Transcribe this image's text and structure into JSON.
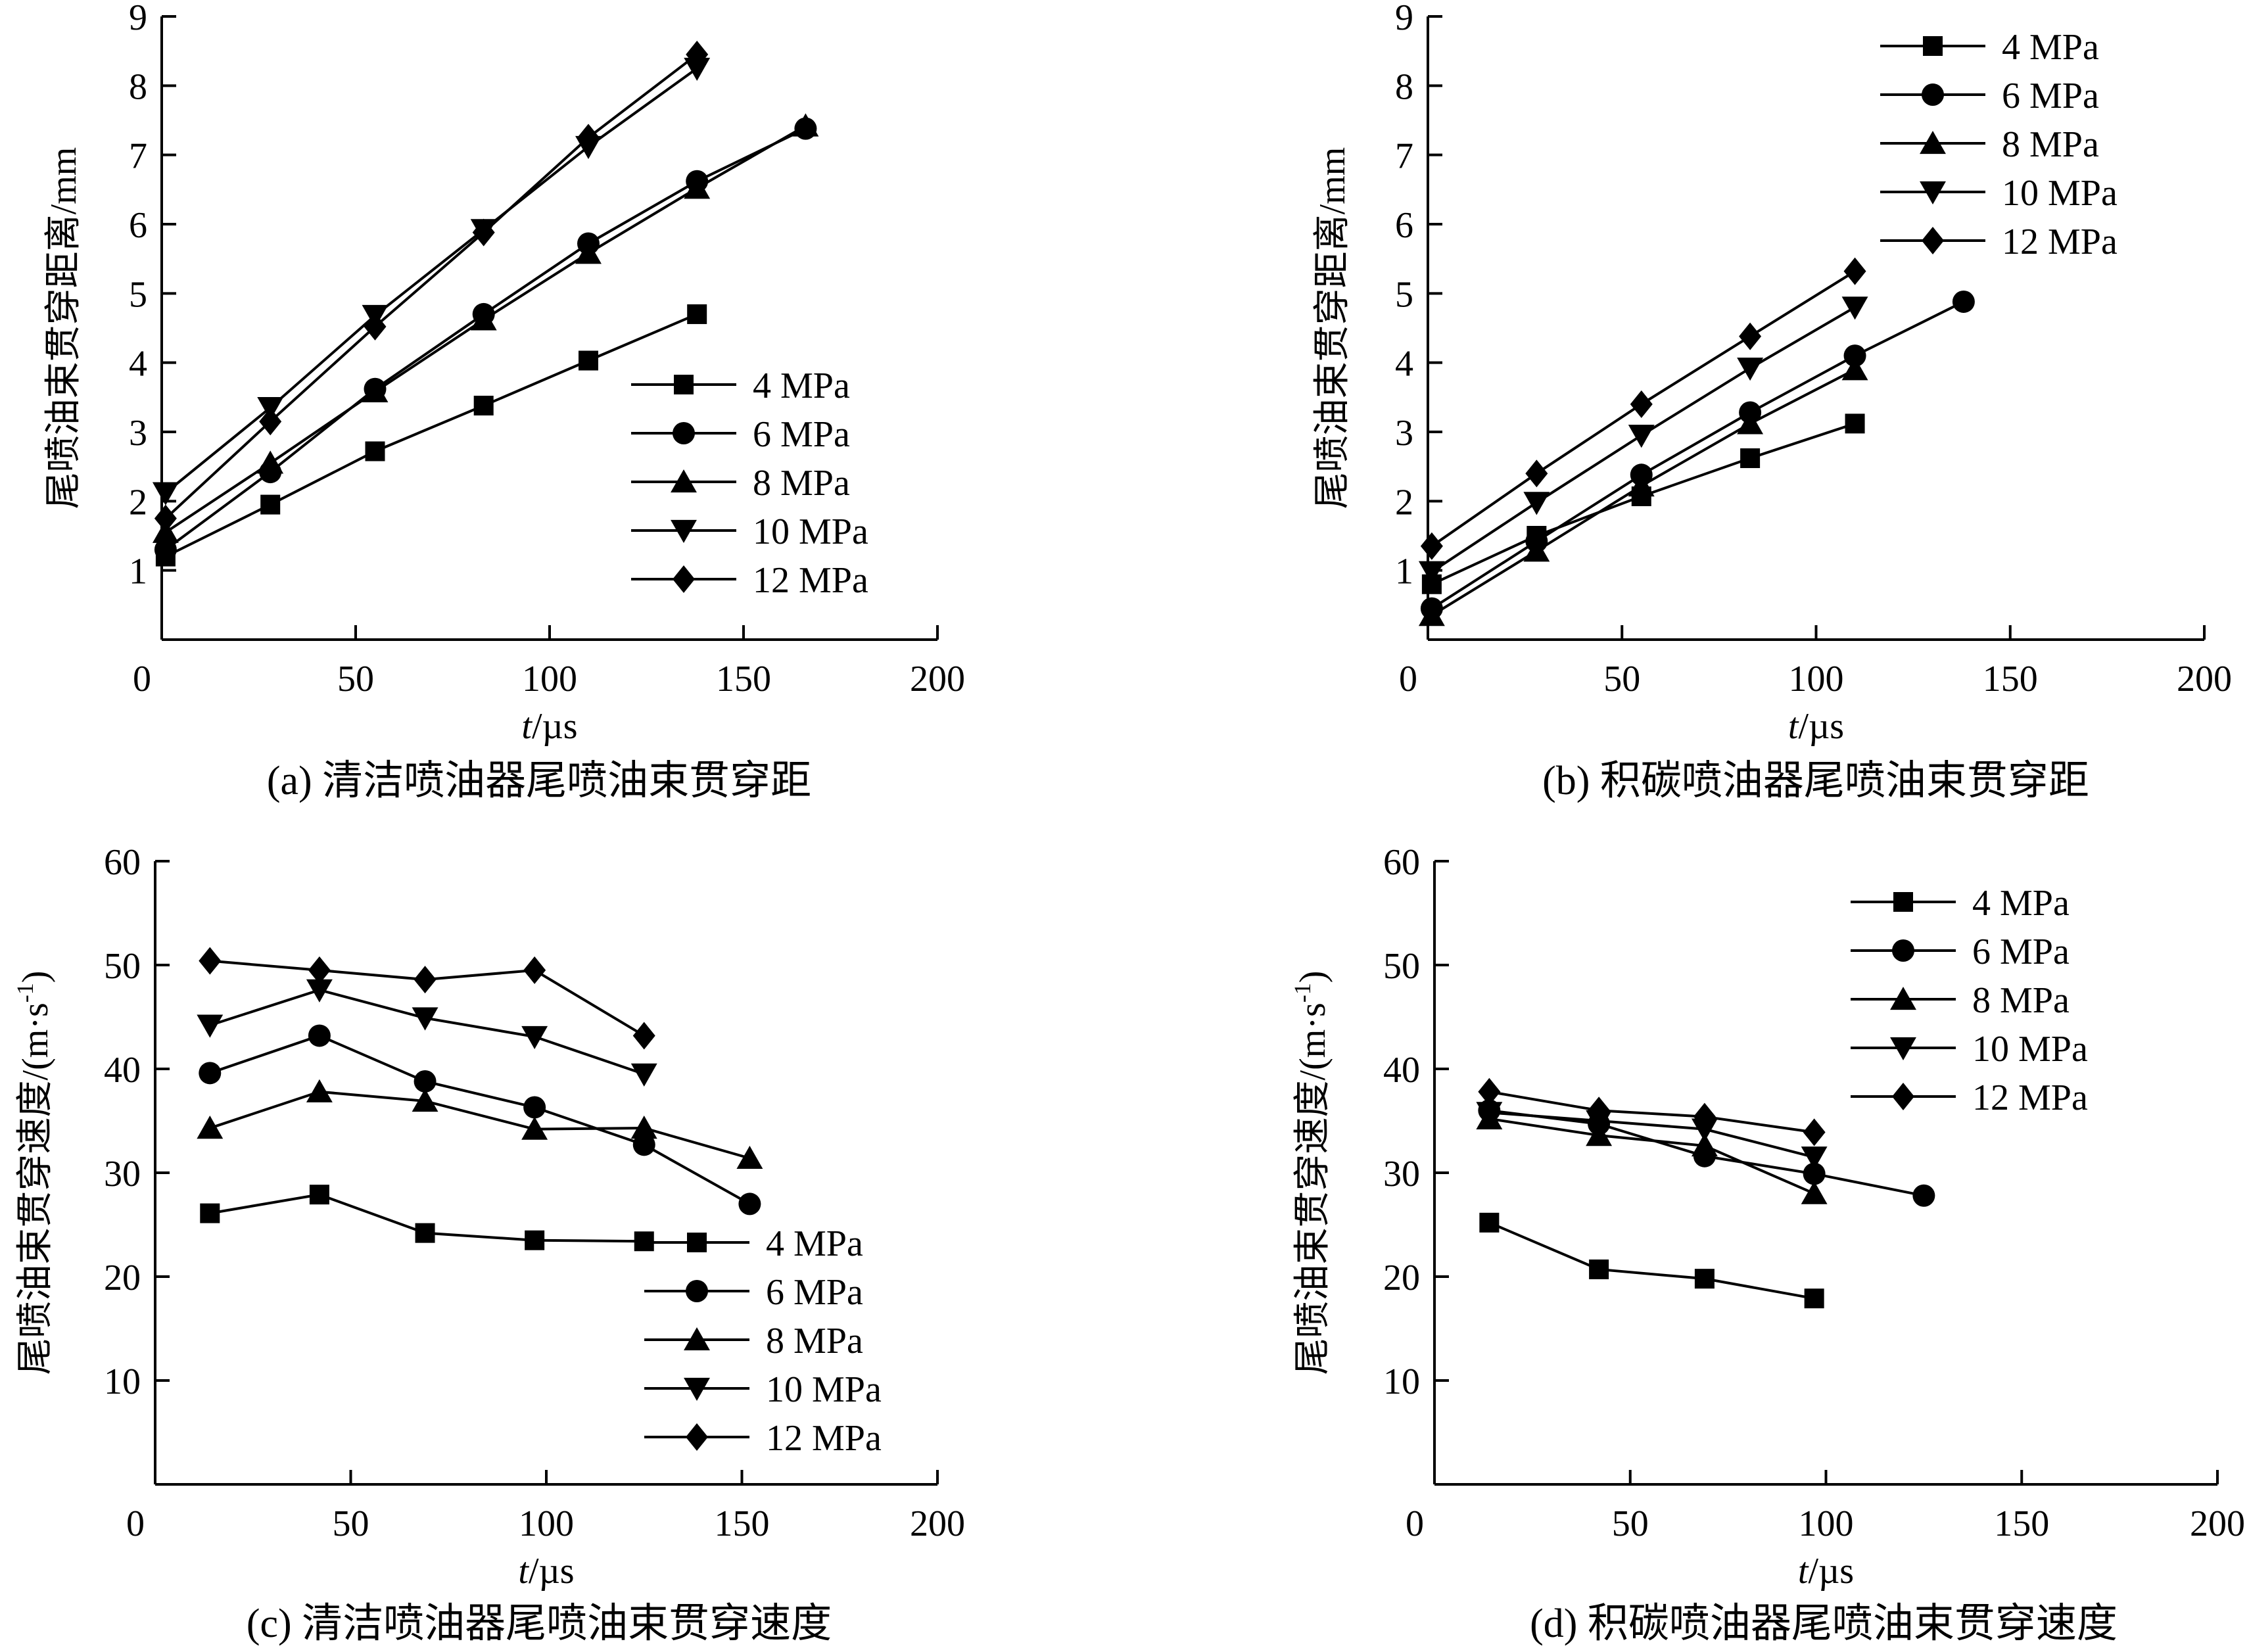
{
  "figure": {
    "charts": [
      {
        "id": "a",
        "type": "line",
        "caption": "(a) 清洁喷油器尾喷油束贯穿距",
        "xlabel_italic": "t",
        "xlabel_unit": "/µs",
        "ylabel": "尾喷油束贯穿距离/mm",
        "xlim": [
          0,
          200
        ],
        "ylim": [
          0,
          9
        ],
        "xticks": [
          "0",
          "50",
          "100",
          "150",
          "200"
        ],
        "yticks": [
          "1",
          "2",
          "3",
          "4",
          "5",
          "6",
          "7",
          "8",
          "9"
        ],
        "legend_position": "bottom-right",
        "series": [
          {
            "name": "4 MPa",
            "marker": "square",
            "x": [
              1,
              28,
              55,
              83,
              110,
              138
            ],
            "y": [
              1.2,
              1.95,
              2.72,
              3.38,
              4.03,
              4.7
            ]
          },
          {
            "name": "6 MPa",
            "marker": "circle",
            "x": [
              1,
              28,
              55,
              83,
              110,
              138,
              166
            ],
            "y": [
              1.3,
              2.42,
              3.62,
              4.7,
              5.72,
              6.62,
              7.38
            ]
          },
          {
            "name": "8 MPa",
            "marker": "triangle-up",
            "x": [
              1,
              28,
              55,
              83,
              110,
              138,
              166
            ],
            "y": [
              1.55,
              2.55,
              3.58,
              4.62,
              5.58,
              6.52,
              7.42
            ]
          },
          {
            "name": "10 MPa",
            "marker": "triangle-down",
            "x": [
              1,
              28,
              55,
              83,
              110,
              138
            ],
            "y": [
              2.12,
              3.35,
              4.68,
              5.92,
              7.12,
              8.25
            ]
          },
          {
            "name": "12 MPa",
            "marker": "diamond",
            "x": [
              1,
              28,
              55,
              83,
              110,
              138
            ],
            "y": [
              1.75,
              3.15,
              4.52,
              5.88,
              7.25,
              8.45
            ]
          }
        ]
      },
      {
        "id": "b",
        "type": "line",
        "caption": "(b) 积碳喷油器尾喷油束贯穿距",
        "xlabel_italic": "t",
        "xlabel_unit": "/µs",
        "ylabel": "尾喷油束贯穿距离/mm",
        "xlim": [
          0,
          200
        ],
        "ylim": [
          0,
          9
        ],
        "xticks": [
          "0",
          "50",
          "100",
          "150",
          "200"
        ],
        "yticks": [
          "1",
          "2",
          "3",
          "4",
          "5",
          "6",
          "7",
          "8",
          "9"
        ],
        "legend_position": "top-right",
        "series": [
          {
            "name": "4 MPa",
            "marker": "square",
            "x": [
              1,
              28,
              55,
              83,
              110
            ],
            "y": [
              0.8,
              1.5,
              2.07,
              2.62,
              3.12
            ]
          },
          {
            "name": "6 MPa",
            "marker": "circle",
            "x": [
              1,
              28,
              55,
              83,
              110,
              138
            ],
            "y": [
              0.45,
              1.42,
              2.38,
              3.28,
              4.1,
              4.88
            ]
          },
          {
            "name": "8 MPa",
            "marker": "triangle-up",
            "x": [
              1,
              28,
              55,
              83,
              110
            ],
            "y": [
              0.35,
              1.28,
              2.22,
              3.12,
              3.9
            ]
          },
          {
            "name": "10 MPa",
            "marker": "triangle-down",
            "x": [
              1,
              28,
              55,
              83,
              110
            ],
            "y": [
              0.98,
              1.98,
              2.95,
              3.92,
              4.8
            ]
          },
          {
            "name": "12 MPa",
            "marker": "diamond",
            "x": [
              1,
              28,
              55,
              83,
              110
            ],
            "y": [
              1.35,
              2.4,
              3.4,
              4.38,
              5.32
            ]
          }
        ]
      },
      {
        "id": "c",
        "type": "line",
        "caption": "(c) 清洁喷油器尾喷油束贯穿速度",
        "xlabel_italic": "t",
        "xlabel_unit": "/µs",
        "ylabel": "尾喷油束贯穿速度/(m·s",
        "ylabel_sup": "-1",
        "ylabel_end": ")",
        "xlim": [
          0,
          200
        ],
        "ylim": [
          0,
          60
        ],
        "xticks": [
          "0",
          "50",
          "100",
          "150",
          "200"
        ],
        "yticks": [
          "10",
          "20",
          "30",
          "40",
          "50",
          "60"
        ],
        "legend_position": "bottom-right",
        "series": [
          {
            "name": "4 MPa",
            "marker": "square",
            "x": [
              14,
              42,
              69,
              97,
              125
            ],
            "y": [
              26.1,
              27.9,
              24.2,
              23.5,
              23.4
            ]
          },
          {
            "name": "6 MPa",
            "marker": "circle",
            "x": [
              14,
              42,
              69,
              97,
              125,
              152
            ],
            "y": [
              39.6,
              43.2,
              38.8,
              36.3,
              32.7,
              27.0
            ]
          },
          {
            "name": "8 MPa",
            "marker": "triangle-up",
            "x": [
              14,
              42,
              69,
              97,
              125,
              152
            ],
            "y": [
              34.3,
              37.8,
              36.9,
              34.2,
              34.3,
              31.4
            ]
          },
          {
            "name": "10 MPa",
            "marker": "triangle-down",
            "x": [
              14,
              42,
              69,
              97,
              125
            ],
            "y": [
              44.2,
              47.6,
              44.9,
              43.1,
              39.5
            ]
          },
          {
            "name": "12 MPa",
            "marker": "diamond",
            "x": [
              14,
              42,
              69,
              97,
              125
            ],
            "y": [
              50.4,
              49.5,
              48.6,
              49.5,
              43.2
            ]
          }
        ]
      },
      {
        "id": "d",
        "type": "line",
        "caption": "(d) 积碳喷油器尾喷油束贯穿速度",
        "xlabel_italic": "t",
        "xlabel_unit": "/µs",
        "ylabel": "尾喷油束贯穿速度/(m·s",
        "ylabel_sup": "-1",
        "ylabel_end": ")",
        "xlim": [
          0,
          200
        ],
        "ylim": [
          0,
          60
        ],
        "xticks": [
          "0",
          "50",
          "100",
          "150",
          "200"
        ],
        "yticks": [
          "10",
          "20",
          "30",
          "40",
          "50",
          "60"
        ],
        "legend_position": "top-right",
        "series": [
          {
            "name": "4 MPa",
            "marker": "square",
            "x": [
              14,
              42,
              69,
              97
            ],
            "y": [
              25.2,
              20.7,
              19.8,
              17.9
            ]
          },
          {
            "name": "6 MPa",
            "marker": "circle",
            "x": [
              14,
              42,
              69,
              97,
              125
            ],
            "y": [
              36.0,
              34.7,
              31.6,
              29.9,
              27.8
            ]
          },
          {
            "name": "8 MPa",
            "marker": "triangle-up",
            "x": [
              14,
              42,
              69,
              97
            ],
            "y": [
              35.2,
              33.6,
              32.6,
              28.0
            ]
          },
          {
            "name": "10 MPa",
            "marker": "triangle-down",
            "x": [
              14,
              42,
              69,
              97
            ],
            "y": [
              35.8,
              35.0,
              34.2,
              31.5
            ]
          },
          {
            "name": "12 MPa",
            "marker": "diamond",
            "x": [
              14,
              42,
              69,
              97
            ],
            "y": [
              37.8,
              36.0,
              35.4,
              33.9
            ]
          }
        ]
      }
    ]
  }
}
